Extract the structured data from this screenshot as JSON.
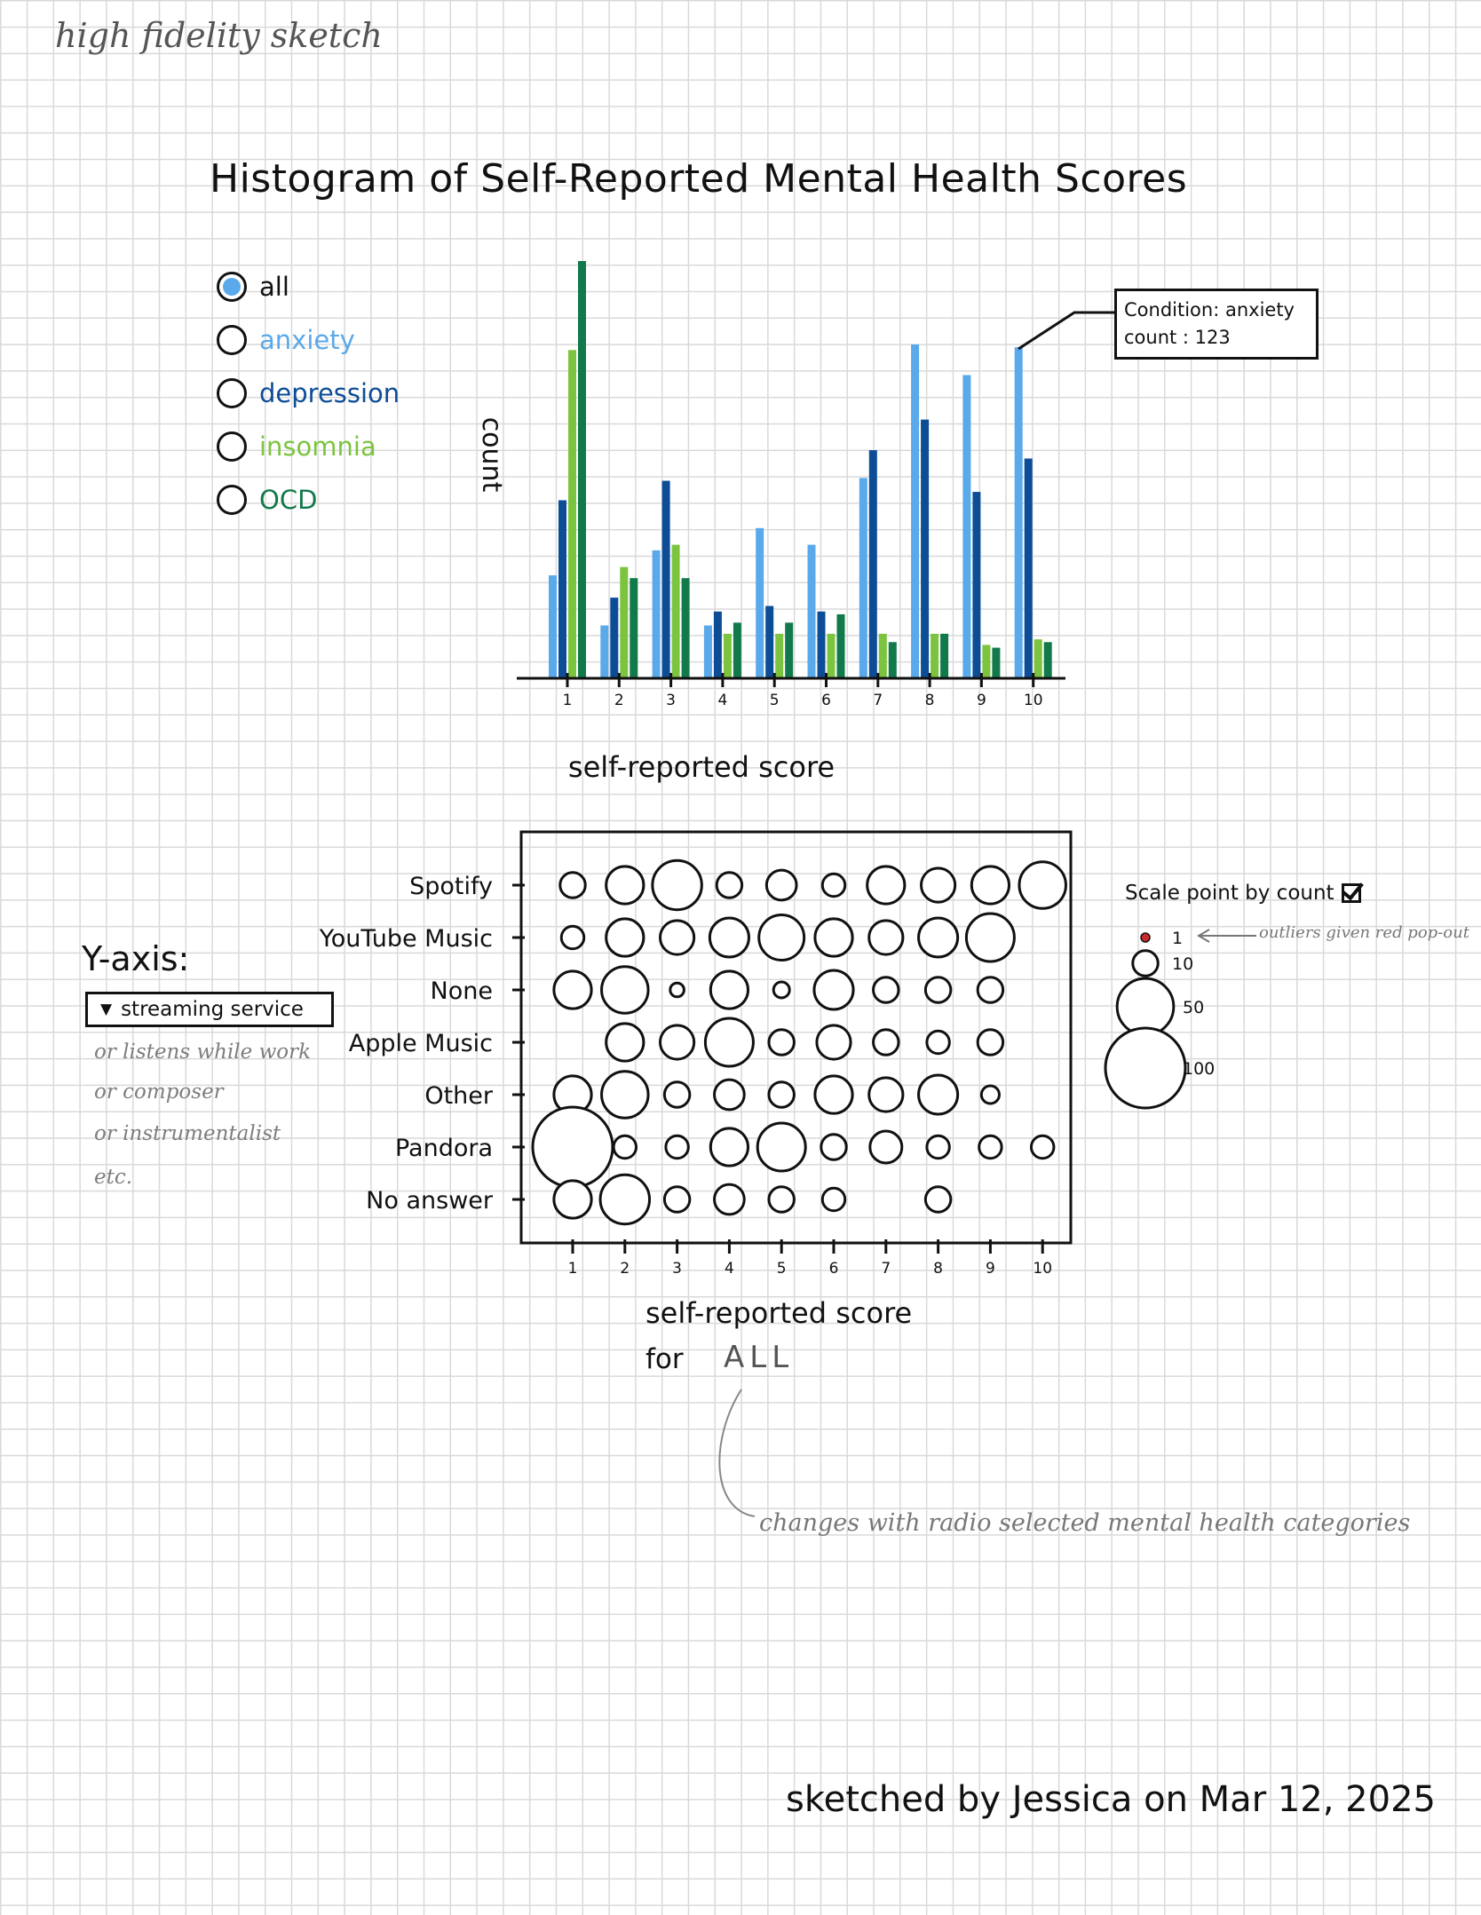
{
  "header": {
    "text": "high fidelity sketch"
  },
  "colors": {
    "anxiety": "#5aa9ea",
    "depression": "#0d4d96",
    "insomnia": "#7cc43f",
    "ocd": "#127a4a",
    "radio_selected": "#5aa9ea",
    "outlier": "#cc2a2a",
    "note": "#7d7d7d"
  },
  "radio": {
    "selected": "all",
    "options": [
      {
        "key": "all",
        "label": "all"
      },
      {
        "key": "anxiety",
        "label": "anxiety"
      },
      {
        "key": "depression",
        "label": "depression"
      },
      {
        "key": "insomnia",
        "label": "insomnia"
      },
      {
        "key": "ocd",
        "label": "OCD"
      }
    ]
  },
  "y_axis_control": {
    "title": "Y-axis:",
    "selected": "streaming service",
    "alternatives": [
      "or listens while work",
      "or composer",
      "or instrumentalist",
      "etc."
    ]
  },
  "tooltip": {
    "line1": "Condition: anxiety",
    "line2": "count : 123"
  },
  "bubble_legend": {
    "title": "Scale point by count",
    "checked": true,
    "items": [
      "1",
      "10",
      "50",
      "100"
    ],
    "outlier_note": "outliers given red pop-out"
  },
  "annotations": {
    "for_label": "for",
    "for_value": "ALL",
    "changes_note": "changes with radio selected mental health categories"
  },
  "signature": "sketched by Jessica on Mar 12, 2025",
  "chart_data": [
    {
      "type": "bar",
      "title": "Histogram of Self-Reported Mental Health Scores",
      "xlabel": "self-reported score",
      "ylabel": "count",
      "categories": [
        "1",
        "2",
        "3",
        "4",
        "5",
        "6",
        "7",
        "8",
        "9",
        "10"
      ],
      "ylim": [
        0,
        150
      ],
      "series": [
        {
          "name": "anxiety",
          "values": [
            37,
            19,
            46,
            19,
            54,
            48,
            72,
            120,
            109,
            119
          ]
        },
        {
          "name": "depression",
          "values": [
            64,
            29,
            71,
            24,
            26,
            24,
            82,
            93,
            67,
            79
          ]
        },
        {
          "name": "insomnia",
          "values": [
            118,
            40,
            48,
            16,
            16,
            16,
            16,
            16,
            12,
            14
          ]
        },
        {
          "name": "ocd",
          "values": [
            150,
            36,
            36,
            20,
            20,
            23,
            13,
            16,
            11,
            13
          ]
        }
      ]
    },
    {
      "type": "scatter",
      "xlabel": "self-reported score",
      "x_ticks": [
        "1",
        "2",
        "3",
        "4",
        "5",
        "6",
        "7",
        "8",
        "9",
        "10"
      ],
      "categories": [
        "Spotify",
        "YouTube Music",
        "None",
        "Apple Music",
        "Other",
        "Pandora",
        "No answer"
      ],
      "points": [
        {
          "service": "Spotify",
          "score": 1,
          "count": 10
        },
        {
          "service": "Spotify",
          "score": 2,
          "count": 22
        },
        {
          "service": "Spotify",
          "score": 3,
          "count": 38
        },
        {
          "service": "Spotify",
          "score": 4,
          "count": 10
        },
        {
          "service": "Spotify",
          "score": 5,
          "count": 14
        },
        {
          "service": "Spotify",
          "score": 6,
          "count": 8
        },
        {
          "service": "Spotify",
          "score": 7,
          "count": 22
        },
        {
          "service": "Spotify",
          "score": 8,
          "count": 18
        },
        {
          "service": "Spotify",
          "score": 9,
          "count": 22
        },
        {
          "service": "Spotify",
          "score": 10,
          "count": 34
        },
        {
          "service": "YouTube Music",
          "score": 1,
          "count": 8
        },
        {
          "service": "YouTube Music",
          "score": 2,
          "count": 22
        },
        {
          "service": "YouTube Music",
          "score": 3,
          "count": 18
        },
        {
          "service": "YouTube Music",
          "score": 4,
          "count": 24
        },
        {
          "service": "YouTube Music",
          "score": 5,
          "count": 32
        },
        {
          "service": "YouTube Music",
          "score": 6,
          "count": 22
        },
        {
          "service": "YouTube Music",
          "score": 7,
          "count": 18
        },
        {
          "service": "YouTube Music",
          "score": 8,
          "count": 24
        },
        {
          "service": "YouTube Music",
          "score": 9,
          "count": 36
        },
        {
          "service": "None",
          "score": 1,
          "count": 22
        },
        {
          "service": "None",
          "score": 2,
          "count": 34
        },
        {
          "service": "None",
          "score": 3,
          "count": 3
        },
        {
          "service": "None",
          "score": 4,
          "count": 22
        },
        {
          "service": "None",
          "score": 5,
          "count": 4
        },
        {
          "service": "None",
          "score": 6,
          "count": 24
        },
        {
          "service": "None",
          "score": 7,
          "count": 10
        },
        {
          "service": "None",
          "score": 8,
          "count": 10
        },
        {
          "service": "None",
          "score": 9,
          "count": 10
        },
        {
          "service": "Apple Music",
          "score": 2,
          "count": 22
        },
        {
          "service": "Apple Music",
          "score": 3,
          "count": 18
        },
        {
          "service": "Apple Music",
          "score": 4,
          "count": 36
        },
        {
          "service": "Apple Music",
          "score": 5,
          "count": 10
        },
        {
          "service": "Apple Music",
          "score": 6,
          "count": 18
        },
        {
          "service": "Apple Music",
          "score": 7,
          "count": 10
        },
        {
          "service": "Apple Music",
          "score": 8,
          "count": 8
        },
        {
          "service": "Apple Music",
          "score": 9,
          "count": 10
        },
        {
          "service": "Other",
          "score": 1,
          "count": 22
        },
        {
          "service": "Other",
          "score": 2,
          "count": 34
        },
        {
          "service": "Other",
          "score": 3,
          "count": 10
        },
        {
          "service": "Other",
          "score": 4,
          "count": 14
        },
        {
          "service": "Other",
          "score": 5,
          "count": 10
        },
        {
          "service": "Other",
          "score": 6,
          "count": 22
        },
        {
          "service": "Other",
          "score": 7,
          "count": 18
        },
        {
          "service": "Other",
          "score": 8,
          "count": 24
        },
        {
          "service": "Other",
          "score": 9,
          "count": 5
        },
        {
          "service": "Pandora",
          "score": 1,
          "count": 100
        },
        {
          "service": "Pandora",
          "score": 2,
          "count": 8
        },
        {
          "service": "Pandora",
          "score": 3,
          "count": 8
        },
        {
          "service": "Pandora",
          "score": 4,
          "count": 22
        },
        {
          "service": "Pandora",
          "score": 5,
          "count": 36
        },
        {
          "service": "Pandora",
          "score": 6,
          "count": 10
        },
        {
          "service": "Pandora",
          "score": 7,
          "count": 16
        },
        {
          "service": "Pandora",
          "score": 8,
          "count": 8
        },
        {
          "service": "Pandora",
          "score": 9,
          "count": 8
        },
        {
          "service": "Pandora",
          "score": 10,
          "count": 8
        },
        {
          "service": "No answer",
          "score": 1,
          "count": 22
        },
        {
          "service": "No answer",
          "score": 2,
          "count": 38
        },
        {
          "service": "No answer",
          "score": 3,
          "count": 10
        },
        {
          "service": "No answer",
          "score": 4,
          "count": 14
        },
        {
          "service": "No answer",
          "score": 5,
          "count": 10
        },
        {
          "service": "No answer",
          "score": 6,
          "count": 8
        },
        {
          "service": "No answer",
          "score": 8,
          "count": 10
        }
      ]
    }
  ]
}
